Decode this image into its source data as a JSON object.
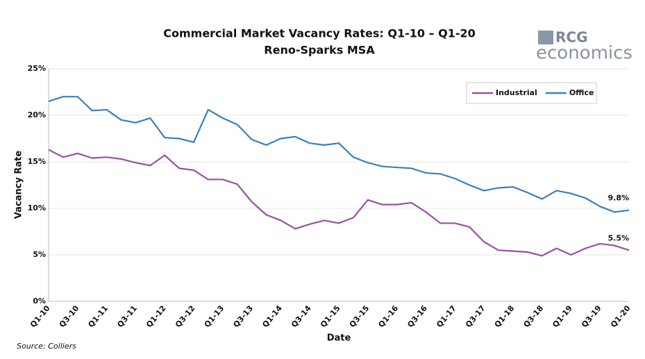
{
  "chart_data": {
    "type": "line",
    "title": "Commercial Market Vacancy Rates: Q1-10 – Q1-20",
    "subtitle": "Reno-Sparks MSA",
    "logo": {
      "top": "RCG",
      "bottom": "economics"
    },
    "x_label": "Date",
    "y_label": "Vacancy Rate",
    "source": "Source: Colliers",
    "categories": [
      "Q1-10",
      null,
      "Q3-10",
      null,
      "Q1-11",
      null,
      "Q3-11",
      null,
      "Q1-12",
      null,
      "Q3-12",
      null,
      "Q1-13",
      null,
      "Q3-13",
      null,
      "Q1-14",
      null,
      "Q3-14",
      null,
      "Q1-15",
      null,
      "Q3-15",
      null,
      "Q1-16",
      null,
      "Q3-16",
      null,
      "Q1-17",
      null,
      "Q3-17",
      null,
      "Q1-18",
      null,
      "Q3-18",
      null,
      "Q1-19",
      null,
      "Q3-19",
      null,
      "Q1-20"
    ],
    "series": [
      {
        "name": "Industrial",
        "color": "#9b4ea6",
        "values": [
          16.3,
          15.5,
          15.9,
          15.4,
          15.5,
          15.3,
          14.9,
          14.6,
          15.7,
          14.3,
          14.1,
          13.1,
          13.1,
          12.6,
          10.7,
          9.3,
          8.7,
          7.8,
          8.3,
          8.7,
          8.4,
          9.0,
          10.9,
          10.4,
          10.4,
          10.6,
          9.6,
          8.4,
          8.4,
          8.0,
          6.4,
          5.5,
          5.4,
          5.3,
          4.9,
          5.7,
          5.0,
          5.7,
          6.2,
          6.0,
          5.5
        ],
        "value_labels": [
          null,
          null,
          null,
          null,
          null,
          null,
          null,
          null,
          null,
          null,
          null,
          null,
          null,
          null,
          null,
          null,
          null,
          null,
          null,
          null,
          null,
          null,
          null,
          null,
          null,
          null,
          null,
          null,
          null,
          null,
          null,
          null,
          null,
          null,
          null,
          null,
          null,
          null,
          null,
          null,
          "5.5%"
        ]
      },
      {
        "name": "Office",
        "color": "#3a7fb8",
        "values": [
          21.5,
          22.0,
          22.0,
          20.5,
          20.6,
          19.5,
          19.2,
          19.7,
          17.6,
          17.5,
          17.1,
          20.6,
          19.7,
          19.0,
          17.4,
          16.8,
          17.5,
          17.7,
          17.0,
          16.8,
          17.0,
          15.5,
          14.9,
          14.5,
          14.4,
          14.3,
          13.8,
          13.7,
          13.2,
          12.5,
          11.9,
          12.2,
          12.3,
          11.7,
          11.0,
          11.9,
          11.6,
          11.1,
          10.2,
          9.6,
          9.8
        ],
        "value_labels": [
          null,
          null,
          null,
          null,
          null,
          null,
          null,
          null,
          null,
          null,
          null,
          null,
          null,
          null,
          null,
          null,
          null,
          null,
          null,
          null,
          null,
          null,
          null,
          null,
          null,
          null,
          null,
          null,
          null,
          null,
          null,
          null,
          null,
          null,
          null,
          null,
          null,
          null,
          null,
          null,
          "9.8%"
        ]
      }
    ],
    "ylim": [
      0,
      25
    ],
    "yticks": [
      {
        "value": 0,
        "label": "0%"
      },
      {
        "value": 5,
        "label": "5%"
      },
      {
        "value": 10,
        "label": "10%"
      },
      {
        "value": 15,
        "label": "15%"
      },
      {
        "value": 20,
        "label": "20%"
      },
      {
        "value": 25,
        "label": "25%"
      }
    ],
    "grid": true,
    "legend": "top-right"
  }
}
